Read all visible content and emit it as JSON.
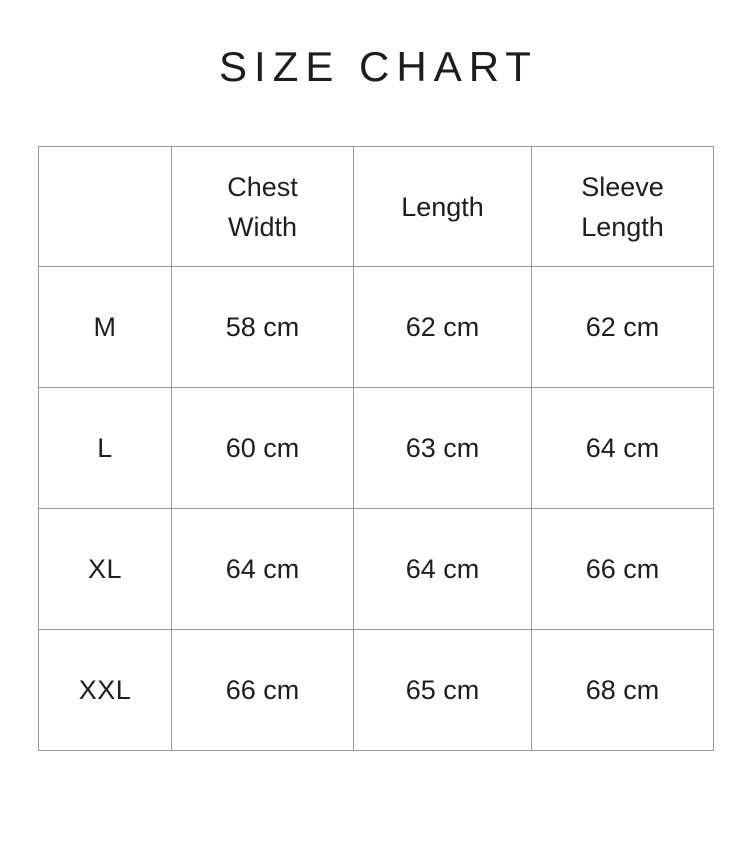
{
  "title": "SIZE CHART",
  "colors": {
    "background": "#ffffff",
    "text": "#1e1e1e",
    "border": "#999999"
  },
  "header_display": [
    "",
    "Chest\nWidth",
    "Length",
    "Sleeve\nLength"
  ],
  "chart_data": {
    "type": "table",
    "title": "SIZE CHART",
    "columns": [
      "",
      "Chest Width",
      "Length",
      "Sleeve Length"
    ],
    "units": "cm",
    "rows": [
      [
        "M",
        "58 cm",
        "62 cm",
        "62 cm"
      ],
      [
        "L",
        "60 cm",
        "63 cm",
        "64 cm"
      ],
      [
        "XL",
        "64 cm",
        "64 cm",
        "66 cm"
      ],
      [
        "XXL",
        "66 cm",
        "65 cm",
        "68 cm"
      ]
    ]
  }
}
